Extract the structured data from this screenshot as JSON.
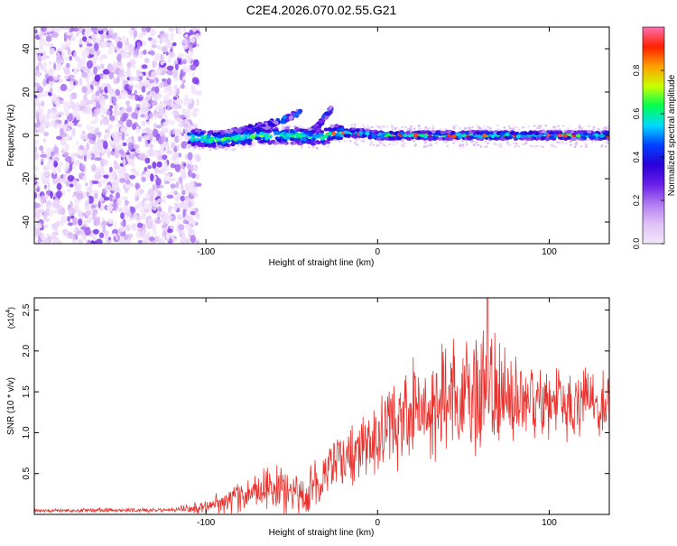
{
  "page": {
    "title": "C2E4.2026.070.02.55.G21"
  },
  "chart_data": [
    {
      "type": "heatmap",
      "title": "C2E4.2026.070.02.55.G21",
      "xlabel": "Height of straight line (km)",
      "ylabel": "Frequency (Hz)",
      "xlim": [
        -200,
        135
      ],
      "ylim": [
        -50,
        50
      ],
      "x_ticks": [
        {
          "value": -100,
          "label": "-100"
        },
        {
          "value": 0,
          "label": "0"
        },
        {
          "value": 100,
          "label": "100"
        }
      ],
      "y_ticks": [
        {
          "value": 40,
          "label": "40"
        },
        {
          "value": 20,
          "label": "20"
        },
        {
          "value": 0,
          "label": "0"
        },
        {
          "value": -20,
          "label": "-20"
        },
        {
          "value": -40,
          "label": "-40"
        }
      ],
      "noise_region_x": [
        -200,
        -108
      ],
      "signal_track": [
        {
          "x": -110,
          "f": -1
        },
        {
          "x": -90,
          "f": -2
        },
        {
          "x": -70,
          "f": 0
        },
        {
          "x": -50,
          "f": 0
        },
        {
          "x": -35,
          "f": -1
        },
        {
          "x": -25,
          "f": 1
        },
        {
          "x": -10,
          "f": 1
        },
        {
          "x": 0,
          "f": 0
        },
        {
          "x": 30,
          "f": 0
        },
        {
          "x": 60,
          "f": 0
        },
        {
          "x": 100,
          "f": 0
        },
        {
          "x": 135,
          "f": 0
        }
      ],
      "branches": [
        [
          {
            "x": -95,
            "f": 0
          },
          {
            "x": -75,
            "f": 3
          },
          {
            "x": -55,
            "f": 7
          },
          {
            "x": -45,
            "f": 11
          }
        ],
        [
          {
            "x": -45,
            "f": -2
          },
          {
            "x": -35,
            "f": 4
          },
          {
            "x": -27,
            "f": 12
          }
        ]
      ],
      "colorbar": {
        "label": "Normalized spectral amplitude",
        "range": [
          0,
          1
        ],
        "ticks": [
          {
            "value": 0.0,
            "label": "0.0"
          },
          {
            "value": 0.2,
            "label": "0.2"
          },
          {
            "value": 0.4,
            "label": "0.4"
          },
          {
            "value": 0.6,
            "label": "0.6"
          },
          {
            "value": 0.8,
            "label": "0.8"
          }
        ],
        "stops": [
          "#f3e6fb",
          "#e0c2f7",
          "#b07cf2",
          "#6a1fe8",
          "#2a00d8",
          "#0040ff",
          "#00d8ff",
          "#00ff50",
          "#c8ff00",
          "#ffa000",
          "#ff2000",
          "#ff70b0"
        ]
      }
    },
    {
      "type": "line",
      "xlabel": "Height of straight line (km)",
      "ylabel": "SNR (10 * v/v)",
      "multiplier": "(x10",
      "multiplier_exp": "4",
      "multiplier_close": ")",
      "xlim": [
        -200,
        135
      ],
      "ylim": [
        0,
        2.65
      ],
      "color": "#e8322d",
      "x_ticks": [
        {
          "value": -100,
          "label": "-100"
        },
        {
          "value": 0,
          "label": "0"
        },
        {
          "value": 100,
          "label": "100"
        }
      ],
      "y_ticks": [
        {
          "value": 0.5,
          "label": "0.5"
        },
        {
          "value": 1.0,
          "label": "1.0"
        },
        {
          "value": 1.5,
          "label": "1.5"
        },
        {
          "value": 2.0,
          "label": "2.0"
        },
        {
          "value": 2.5,
          "label": "2.5"
        }
      ],
      "envelope": [
        {
          "x": -200,
          "mean": 0.05,
          "amp": 0.02
        },
        {
          "x": -120,
          "mean": 0.05,
          "amp": 0.02
        },
        {
          "x": -95,
          "mean": 0.12,
          "amp": 0.1
        },
        {
          "x": -80,
          "mean": 0.22,
          "amp": 0.18
        },
        {
          "x": -60,
          "mean": 0.32,
          "amp": 0.25
        },
        {
          "x": -45,
          "mean": 0.2,
          "amp": 0.2
        },
        {
          "x": -30,
          "mean": 0.5,
          "amp": 0.3
        },
        {
          "x": -15,
          "mean": 0.75,
          "amp": 0.35
        },
        {
          "x": 0,
          "mean": 0.95,
          "amp": 0.4
        },
        {
          "x": 20,
          "mean": 1.25,
          "amp": 0.5
        },
        {
          "x": 40,
          "mean": 1.4,
          "amp": 0.6
        },
        {
          "x": 60,
          "mean": 1.45,
          "amp": 0.75
        },
        {
          "x": 80,
          "mean": 1.4,
          "amp": 0.5
        },
        {
          "x": 100,
          "mean": 1.35,
          "amp": 0.4
        },
        {
          "x": 120,
          "mean": 1.35,
          "amp": 0.35
        },
        {
          "x": 135,
          "mean": 1.35,
          "amp": 0.35
        }
      ],
      "peak": {
        "x": 64,
        "y": 2.65
      }
    }
  ]
}
